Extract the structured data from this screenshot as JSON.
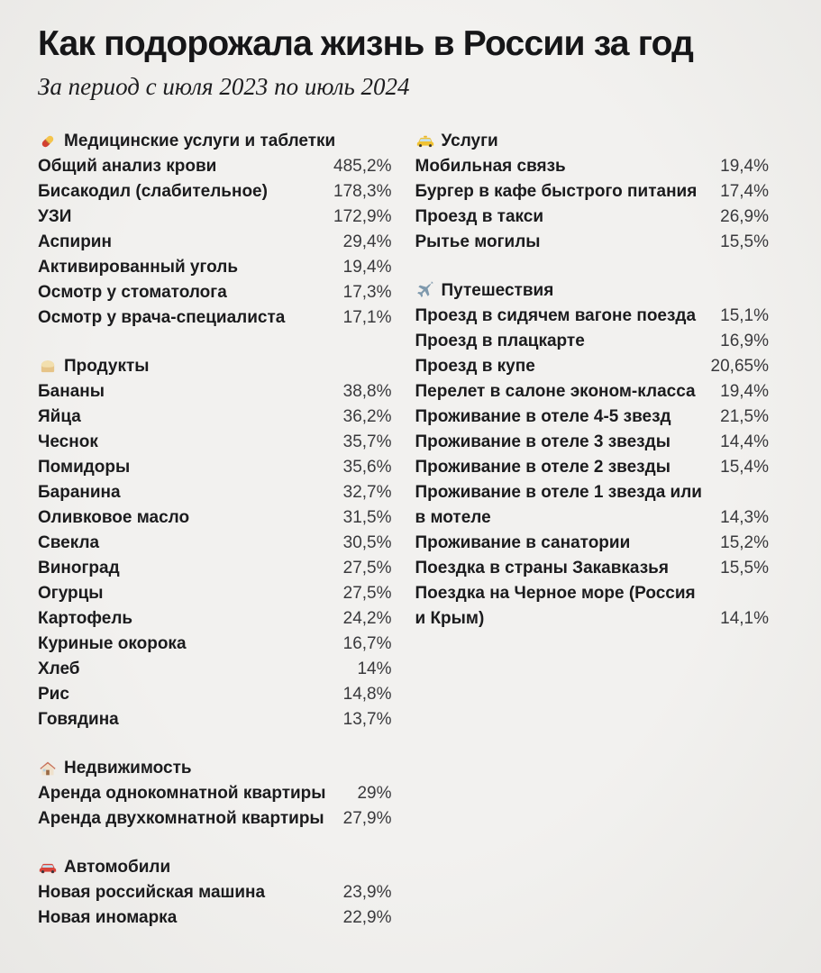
{
  "chart_data": {
    "type": "table",
    "title": "Как подорожала жизнь в России за год",
    "subtitle": "За период с июля 2023 по июль 2024",
    "unit": "percent price increase, July 2023 — July 2024",
    "layout": {
      "columns": 2,
      "grid": false,
      "legend": "none"
    },
    "groups": [
      {
        "column": "left",
        "icon": "pill-icon",
        "category": "Медицинские услуги и таблетки",
        "rows": [
          {
            "label": "Общий анализ крови",
            "value": "485,2%"
          },
          {
            "label": "Бисакодил (слабительное)",
            "value": "178,3%"
          },
          {
            "label": "УЗИ",
            "value": "172,9%"
          },
          {
            "label": "Аспирин",
            "value": "29,4%"
          },
          {
            "label": "Активированный уголь",
            "value": "19,4%"
          },
          {
            "label": "Осмотр у стоматолога",
            "value": "17,3%"
          },
          {
            "label": "Осмотр у врача-специалиста",
            "value": "17,1%"
          }
        ]
      },
      {
        "column": "left",
        "icon": "bread-icon",
        "category": "Продукты",
        "rows": [
          {
            "label": "Бананы",
            "value": "38,8%"
          },
          {
            "label": "Яйца",
            "value": "36,2%"
          },
          {
            "label": "Чеснок",
            "value": "35,7%"
          },
          {
            "label": "Помидоры",
            "value": "35,6%"
          },
          {
            "label": "Баранина",
            "value": "32,7%"
          },
          {
            "label": "Оливковое масло",
            "value": "31,5%"
          },
          {
            "label": "Свекла",
            "value": "30,5%"
          },
          {
            "label": "Виноград",
            "value": "27,5%"
          },
          {
            "label": "Огурцы",
            "value": "27,5%"
          },
          {
            "label": "Картофель",
            "value": "24,2%"
          },
          {
            "label": "Куриные окорока",
            "value": "16,7%"
          },
          {
            "label": "Хлеб",
            "value": "14%"
          },
          {
            "label": "Рис",
            "value": "14,8%"
          },
          {
            "label": "Говядина",
            "value": "13,7%"
          }
        ]
      },
      {
        "column": "left",
        "icon": "house-icon",
        "category": "Недвижимость",
        "rows": [
          {
            "label": "Аренда однокомнатной квартиры",
            "value": "29%"
          },
          {
            "label": "Аренда двухкомнатной квартиры",
            "value": "27,9%"
          }
        ]
      },
      {
        "column": "left",
        "icon": "car-icon",
        "category": "Автомобили",
        "rows": [
          {
            "label": "Новая российская машина",
            "value": "23,9%"
          },
          {
            "label": "Новая иномарка",
            "value": "22,9%"
          }
        ]
      },
      {
        "column": "right",
        "icon": "taxi-icon",
        "category": "Услуги",
        "rows": [
          {
            "label": "Мобильная связь",
            "value": "19,4%"
          },
          {
            "label": "Бургер в кафе быстрого питания",
            "value": "17,4%"
          },
          {
            "label": "Проезд в такси",
            "value": "26,9%"
          },
          {
            "label": "Рытье могилы",
            "value": "15,5%"
          }
        ]
      },
      {
        "column": "right",
        "icon": "airplane-icon",
        "category": "Путешествия",
        "rows": [
          {
            "label": "Проезд в сидячем вагоне поезда",
            "value": "15,1%"
          },
          {
            "label": "Проезд в плацкарте",
            "value": "16,9%"
          },
          {
            "label": "Проезд в купе",
            "value": "20,65%"
          },
          {
            "label": "Перелет в салоне эконом-класса",
            "value": "19,4%"
          },
          {
            "label": "Проживание в отеле 4-5 звезд",
            "value": "21,5%"
          },
          {
            "label": "Проживание в отеле 3 звезды",
            "value": "14,4%"
          },
          {
            "label": "Проживание в отеле 2 звезды",
            "value": "15,4%"
          },
          {
            "label": "Проживание в отеле 1 звезда или в мотеле",
            "value": "14,3%"
          },
          {
            "label": "Проживание в санатории",
            "value": "15,2%"
          },
          {
            "label": "Поездка в страны Закавказья",
            "value": "15,5%"
          },
          {
            "label": "Поездка на Черное море (Россия и Крым)",
            "value": "14,1%"
          }
        ]
      }
    ]
  }
}
